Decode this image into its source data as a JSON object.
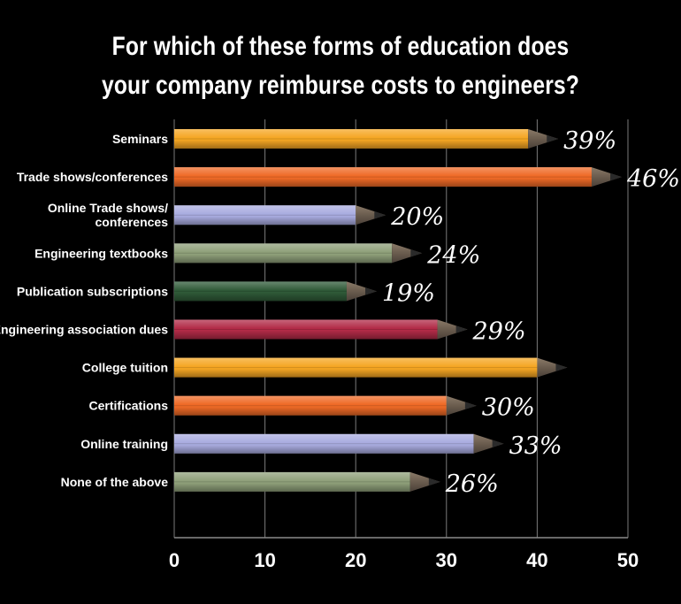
{
  "title_lines": [
    "For which of these forms of education does",
    "your company reimburse costs to engineers?"
  ],
  "chart_data": {
    "type": "bar",
    "orientation": "horizontal",
    "title": "For which of these forms of education does your company reimburse costs to engineers?",
    "categories": [
      [
        "Seminars"
      ],
      [
        "Trade shows/conferences"
      ],
      [
        "Online Trade shows/",
        "conferences"
      ],
      [
        "Engineering textbooks"
      ],
      [
        "Publication subscriptions"
      ],
      [
        "Engineering association dues"
      ],
      [
        "College tuition"
      ],
      [
        "Certifications"
      ],
      [
        "Online training"
      ],
      [
        "None of the above"
      ]
    ],
    "values": [
      39,
      46,
      20,
      24,
      19,
      29,
      40,
      30,
      33,
      26
    ],
    "data_labels": [
      "39%",
      "46%",
      "20%",
      "24%",
      "19%",
      "29%",
      "",
      "30%",
      "33%",
      "26%"
    ],
    "bar_colors": [
      "#f5a623",
      "#ef6a26",
      "#a9ace0",
      "#8fa07a",
      "#2f5a38",
      "#b22b47",
      "#f5a623",
      "#ef6a26",
      "#a9ace0",
      "#8fa07a"
    ],
    "xlim": [
      0,
      50
    ],
    "xticks": [
      "0",
      "10",
      "20",
      "30",
      "40",
      "50"
    ],
    "grid": true
  }
}
